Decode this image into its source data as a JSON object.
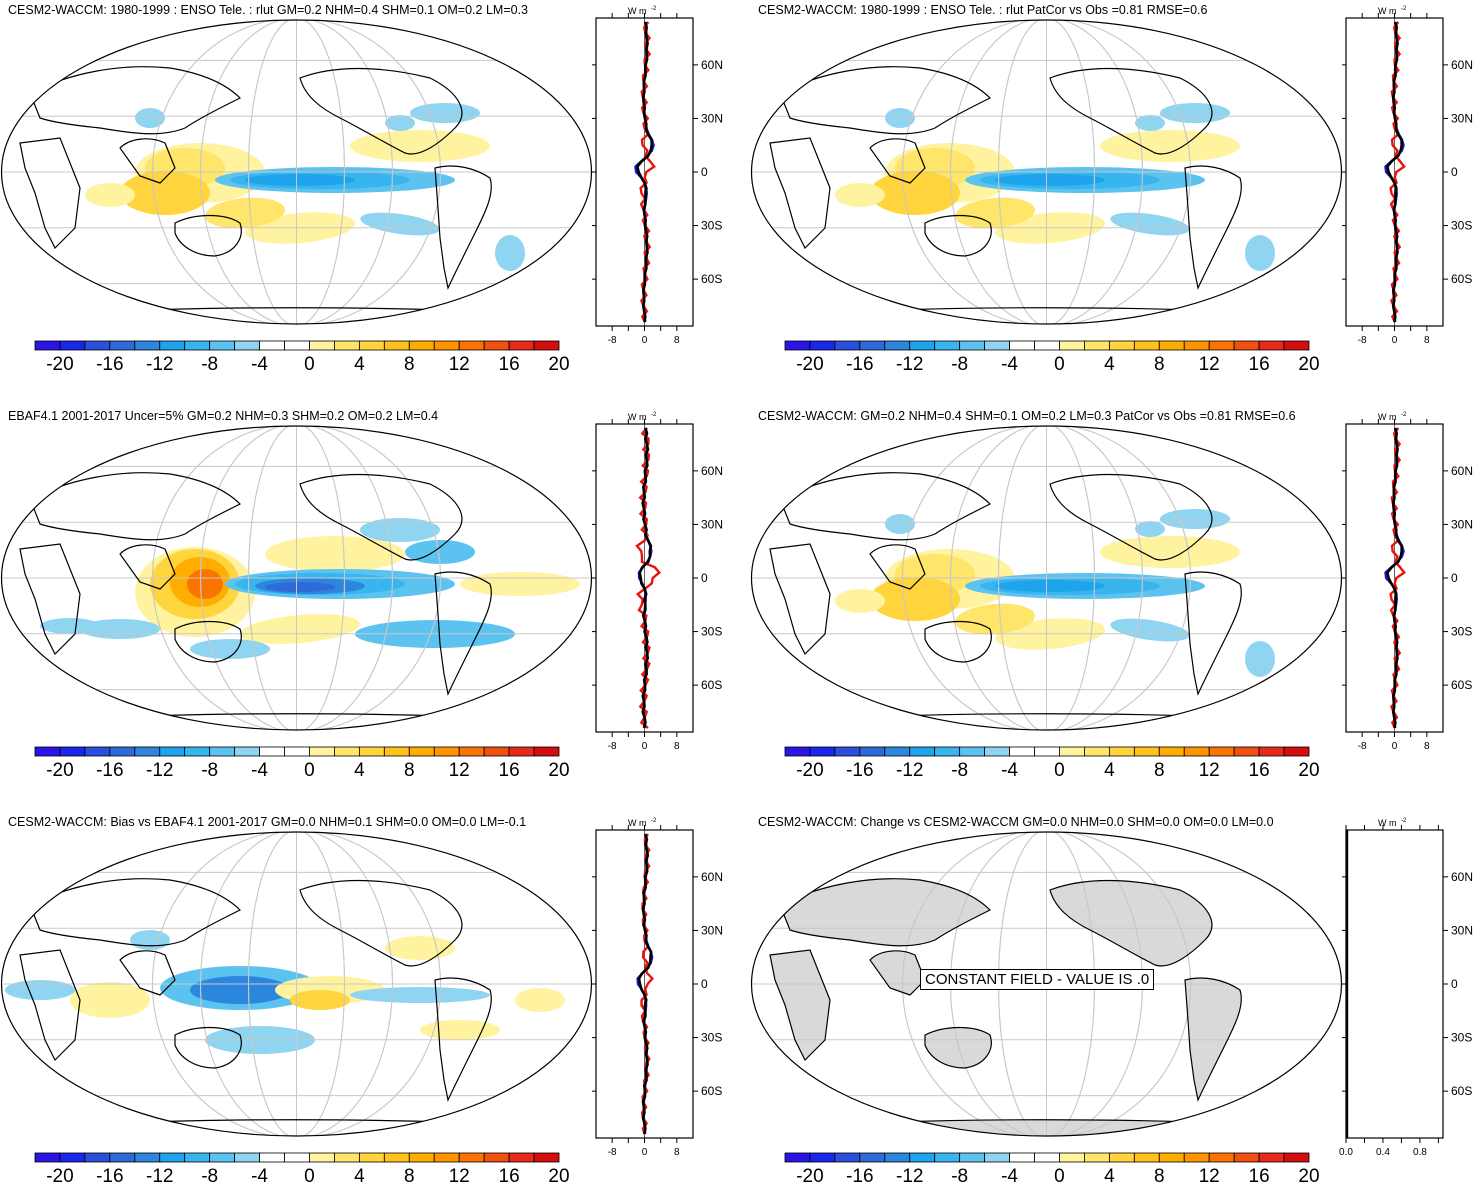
{
  "panels": [
    {
      "title": "CESM2-WACCM: 1980-1999 : ENSO Tele. : rlut GM=0.2 NHM=0.4 SHM=0.1 OM=0.2 LM=0.3",
      "profile_xticks": [
        "-8",
        "0",
        "8"
      ],
      "pattern": "model",
      "constant": false
    },
    {
      "title": "CESM2-WACCM: 1980-1999 : ENSO Tele. : rlut PatCor vs Obs =0.81 RMSE=0.6",
      "profile_xticks": [
        "-8",
        "0",
        "8"
      ],
      "pattern": "model",
      "constant": false
    },
    {
      "title": "EBAF4.1 2001-2017 Uncer=5% GM=0.2 NHM=0.3 SHM=0.2 OM=0.2 LM=0.4",
      "profile_xticks": [
        "-8",
        "0",
        "8"
      ],
      "pattern": "obs",
      "constant": false
    },
    {
      "title": "CESM2-WACCM: GM=0.2 NHM=0.4 SHM=0.1 OM=0.2 LM=0.3 PatCor vs Obs =0.81 RMSE=0.6",
      "profile_xticks": [
        "-8",
        "0",
        "8"
      ],
      "pattern": "model",
      "constant": false
    },
    {
      "title": "CESM2-WACCM: Bias vs EBAF4.1 2001-2017 GM=0.0 NHM=0.1 SHM=0.0 OM=0.0 LM=-0.1",
      "profile_xticks": [
        "-8",
        "0",
        "8"
      ],
      "pattern": "bias",
      "constant": false
    },
    {
      "title": "CESM2-WACCM: Change vs CESM2-WACCM GM=0.0 NHM=0.0 SHM=0.0 OM=0.0 LM=0.0",
      "profile_xticks": [
        "0.0",
        "0.4",
        "0.8"
      ],
      "pattern": "none",
      "constant": true,
      "constant_label": "CONSTANT FIELD - VALUE IS .0"
    }
  ],
  "profile_units": "W m",
  "profile_units_sup": "-2",
  "lat_labels": [
    "60N",
    "30N",
    "0",
    "30S",
    "60S"
  ],
  "colorbar": {
    "labels": [
      "-20",
      "-16",
      "-12",
      "-8",
      "-4",
      "0",
      "4",
      "8",
      "12",
      "16",
      "20"
    ],
    "colors": [
      "#2a14e6",
      "#1a26e8",
      "#2b4fdd",
      "#2f6ad8",
      "#2c86de",
      "#1ea4ec",
      "#38b4ee",
      "#5cc3f0",
      "#8fd4f0",
      "#ffffff",
      "#ffffff",
      "#fff3a0",
      "#ffe56a",
      "#ffd43c",
      "#ffc21c",
      "#ffad00",
      "#ff9300",
      "#fb7400",
      "#f05010",
      "#e82a1a",
      "#d40d10"
    ]
  },
  "line_colors": {
    "black": "#000000",
    "red": "#e8140c",
    "blue": "#1818c8"
  }
}
